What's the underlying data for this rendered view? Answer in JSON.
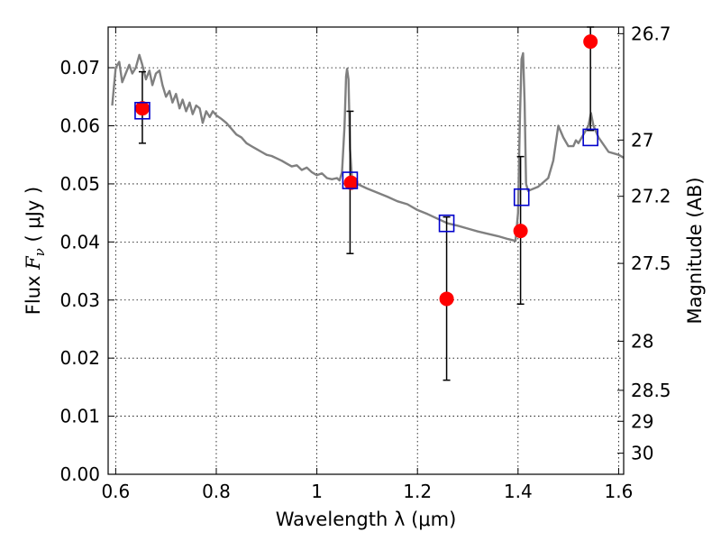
{
  "chart_data": {
    "type": "line",
    "xlabel": "Wavelength  λ (μm)",
    "ylabel": "Flux  F_ν  ( μJy )",
    "ylabel_parts": {
      "prefix": "Flux  ",
      "symbol": "F",
      "subscript": "ν",
      "suffix": "  ( μJy )"
    },
    "y2label": "Magnitude (AB)",
    "xlim": [
      0.585,
      1.61
    ],
    "ylim": [
      0.0,
      0.077
    ],
    "grid": true,
    "grid_style": "dotted",
    "x_ticks": [
      {
        "value": 0.6,
        "label": "0.6"
      },
      {
        "value": 0.8,
        "label": "0.8"
      },
      {
        "value": 1.0,
        "label": "1"
      },
      {
        "value": 1.2,
        "label": "1.2"
      },
      {
        "value": 1.4,
        "label": "1.4"
      },
      {
        "value": 1.6,
        "label": "1.6"
      }
    ],
    "y_ticks": [
      {
        "value": 0.0,
        "label": "0.00"
      },
      {
        "value": 0.01,
        "label": "0.01"
      },
      {
        "value": 0.02,
        "label": "0.02"
      },
      {
        "value": 0.03,
        "label": "0.03"
      },
      {
        "value": 0.04,
        "label": "0.04"
      },
      {
        "value": 0.05,
        "label": "0.05"
      },
      {
        "value": 0.06,
        "label": "0.06"
      },
      {
        "value": 0.07,
        "label": "0.07"
      }
    ],
    "y2_ticks": [
      {
        "mag": 26.7,
        "label": "26.7"
      },
      {
        "mag": 27.0,
        "label": "27"
      },
      {
        "mag": 27.2,
        "label": "27.2"
      },
      {
        "mag": 27.5,
        "label": "27.5"
      },
      {
        "mag": 28.0,
        "label": "28"
      },
      {
        "mag": 28.5,
        "label": "28.5"
      },
      {
        "mag": 29.0,
        "label": "29"
      },
      {
        "mag": 30.0,
        "label": "30"
      }
    ],
    "series": [
      {
        "kind": "line",
        "color": "#808080",
        "x": [
          0.593,
          0.6,
          0.607,
          0.613,
          0.62,
          0.627,
          0.633,
          0.64,
          0.647,
          0.653,
          0.66,
          0.667,
          0.673,
          0.68,
          0.687,
          0.693,
          0.7,
          0.707,
          0.713,
          0.72,
          0.727,
          0.733,
          0.74,
          0.747,
          0.753,
          0.76,
          0.767,
          0.773,
          0.78,
          0.787,
          0.793,
          0.8,
          0.81,
          0.82,
          0.83,
          0.84,
          0.85,
          0.86,
          0.87,
          0.88,
          0.89,
          0.9,
          0.91,
          0.92,
          0.93,
          0.94,
          0.95,
          0.96,
          0.97,
          0.98,
          0.99,
          1.0,
          1.01,
          1.02,
          1.03,
          1.04,
          1.045,
          1.05,
          1.055,
          1.058,
          1.06,
          1.063,
          1.066,
          1.07,
          1.08,
          1.1,
          1.12,
          1.14,
          1.16,
          1.18,
          1.2,
          1.22,
          1.24,
          1.26,
          1.28,
          1.3,
          1.32,
          1.34,
          1.36,
          1.38,
          1.39,
          1.395,
          1.4,
          1.404,
          1.407,
          1.41,
          1.413,
          1.416,
          1.42,
          1.44,
          1.46,
          1.47,
          1.48,
          1.49,
          1.5,
          1.51,
          1.515,
          1.52,
          1.53,
          1.54,
          1.545,
          1.55,
          1.56,
          1.58,
          1.6,
          1.61
        ],
        "y": [
          0.0635,
          0.07,
          0.071,
          0.0675,
          0.069,
          0.0705,
          0.069,
          0.07,
          0.0722,
          0.0705,
          0.068,
          0.0695,
          0.067,
          0.069,
          0.0695,
          0.067,
          0.065,
          0.066,
          0.064,
          0.0655,
          0.063,
          0.0645,
          0.0625,
          0.064,
          0.062,
          0.0635,
          0.063,
          0.0605,
          0.0625,
          0.0615,
          0.0625,
          0.0618,
          0.0612,
          0.0605,
          0.0595,
          0.0585,
          0.058,
          0.057,
          0.0565,
          0.056,
          0.0555,
          0.055,
          0.0548,
          0.0544,
          0.054,
          0.0535,
          0.053,
          0.0532,
          0.0524,
          0.0528,
          0.052,
          0.0515,
          0.0518,
          0.051,
          0.0508,
          0.051,
          0.0506,
          0.052,
          0.06,
          0.0685,
          0.0698,
          0.068,
          0.056,
          0.0505,
          0.05,
          0.0492,
          0.0485,
          0.0478,
          0.047,
          0.0465,
          0.0455,
          0.0448,
          0.044,
          0.0432,
          0.0428,
          0.0423,
          0.0418,
          0.0414,
          0.041,
          0.0405,
          0.0403,
          0.0402,
          0.045,
          0.062,
          0.0715,
          0.0725,
          0.064,
          0.05,
          0.0488,
          0.0495,
          0.051,
          0.054,
          0.06,
          0.058,
          0.0565,
          0.0565,
          0.0575,
          0.057,
          0.0585,
          0.06,
          0.0622,
          0.06,
          0.058,
          0.0555,
          0.055,
          0.0545
        ]
      },
      {
        "kind": "points",
        "marker": "filled-circle",
        "color": "#ff0000",
        "x": [
          0.653,
          1.068,
          1.258,
          1.405,
          1.544
        ],
        "y": [
          0.063,
          0.0502,
          0.0302,
          0.0419,
          0.0745
        ]
      },
      {
        "kind": "points",
        "marker": "open-square",
        "color": "#0000cc",
        "x": [
          0.653,
          1.066,
          1.258,
          1.407,
          1.544
        ],
        "y": [
          0.0626,
          0.0506,
          0.0432,
          0.0477,
          0.058
        ]
      },
      {
        "kind": "errorbars",
        "color": "#000000",
        "x": [
          0.653,
          1.066,
          1.258,
          1.405,
          1.544
        ],
        "y_low": [
          0.057,
          0.038,
          0.0162,
          0.0293,
          0.0592
        ],
        "y_high": [
          0.0693,
          0.0625,
          0.0443,
          0.0547,
          0.077
        ]
      }
    ]
  }
}
